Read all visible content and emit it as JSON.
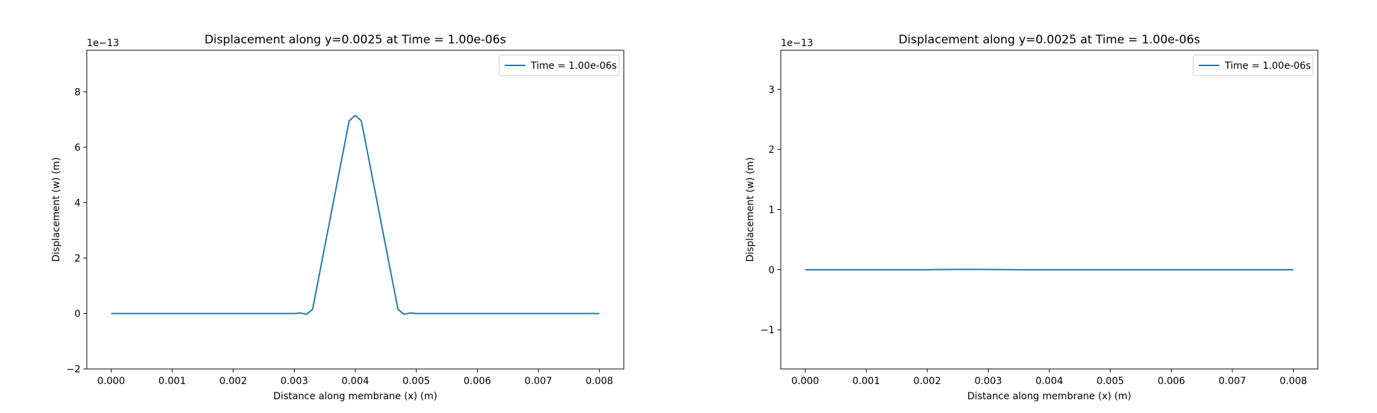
{
  "chart_data": [
    {
      "type": "line",
      "title": "Displacement along y=0.0025 at Time = 1.00e-06s",
      "xlabel": "Distance along membrane (x) (m)",
      "ylabel": "Displacement (w) (m)",
      "y_offset_label": "1e−13",
      "xlim": [
        -0.0004,
        0.0084
      ],
      "ylim": [
        -2.0,
        9.5
      ],
      "x_ticks": [
        0.0,
        0.001,
        0.002,
        0.003,
        0.004,
        0.005,
        0.006,
        0.007,
        0.008
      ],
      "x_tick_labels": [
        "0.000",
        "0.001",
        "0.002",
        "0.003",
        "0.004",
        "0.005",
        "0.006",
        "0.007",
        "0.008"
      ],
      "y_ticks": [
        -2,
        0,
        2,
        4,
        6,
        8
      ],
      "y_tick_labels": [
        "−2",
        "0",
        "2",
        "4",
        "6",
        "8"
      ],
      "grid": false,
      "legend_position": "top-right",
      "series": [
        {
          "name": "Time = 1.00e-06s",
          "color": "#1f77b4",
          "x": [
            0.0,
            0.001,
            0.002,
            0.003,
            0.0031,
            0.0032,
            0.0033,
            0.0039,
            0.004,
            0.0041,
            0.0047,
            0.0048,
            0.0049,
            0.005,
            0.006,
            0.007,
            0.008
          ],
          "y": [
            0.0,
            0.0,
            0.0,
            0.0,
            0.02,
            -0.03,
            0.15,
            6.95,
            7.15,
            6.95,
            0.15,
            -0.03,
            0.02,
            0.0,
            0.0,
            0.0,
            0.0
          ]
        }
      ]
    },
    {
      "type": "line",
      "title": "Displacement along y=0.0025 at Time = 1.00e-06s",
      "xlabel": "Distance along membrane (x) (m)",
      "ylabel": "Displacement (w) (m)",
      "y_offset_label": "1e−13",
      "xlim": [
        -0.0004,
        0.0084
      ],
      "ylim": [
        -1.65,
        3.65
      ],
      "x_ticks": [
        0.0,
        0.001,
        0.002,
        0.003,
        0.004,
        0.005,
        0.006,
        0.007,
        0.008
      ],
      "x_tick_labels": [
        "0.000",
        "0.001",
        "0.002",
        "0.003",
        "0.004",
        "0.005",
        "0.006",
        "0.007",
        "0.008"
      ],
      "y_ticks": [
        -1,
        0,
        1,
        2,
        3
      ],
      "y_tick_labels": [
        "−1",
        "0",
        "1",
        "2",
        "3"
      ],
      "grid": false,
      "legend_position": "top-right",
      "series": [
        {
          "name": "Time = 1.00e-06s",
          "color": "#1f77b4",
          "x": [
            0.0,
            0.002,
            0.0022,
            0.0025,
            0.0028,
            0.0032,
            0.0035,
            0.005,
            0.008
          ],
          "y": [
            0.0,
            0.0,
            0.003,
            0.006,
            0.006,
            0.003,
            0.0,
            0.0,
            0.0
          ]
        }
      ]
    }
  ]
}
